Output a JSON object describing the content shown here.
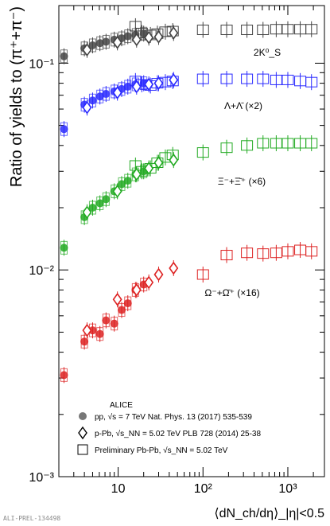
{
  "watermark": "ALI-PREL-134498",
  "chart_data": {
    "type": "scatter",
    "ylabel": "Ratio of yields to (π⁺+π⁻)",
    "xlabel": "⟨dN_ch/dη⟩_|η|<0.5",
    "xscale": "log",
    "yscale": "log",
    "xlim": [
      2.0,
      2700
    ],
    "ylim": [
      0.001,
      0.19
    ],
    "x_ticks": [
      "10",
      "10²",
      "10³"
    ],
    "y_ticks": [
      "10⁻³",
      "10⁻²",
      "10⁻¹"
    ],
    "grid": false,
    "legend_position": "bottom-left",
    "legend_title": "ALICE",
    "legend": [
      {
        "marker": "circle",
        "label": "pp, √s = 7 TeV  Nat. Phys. 13 (2017) 535-539"
      },
      {
        "marker": "diamond",
        "label": "p-Pb, √s_NN = 5.02 TeV  PLB 728 (2014) 25-38"
      },
      {
        "marker": "square",
        "label": "Preliminary Pb-Pb, √s_NN = 5.02 TeV"
      }
    ],
    "series": [
      {
        "name": "2K⁰_S",
        "color": "#444444",
        "pp": {
          "x": [
            2.3,
            4.0,
            5.0,
            6.1,
            7.2,
            9.0,
            11.0,
            13.0,
            16.0,
            20.0
          ],
          "y": [
            0.108,
            0.118,
            0.122,
            0.125,
            0.127,
            0.13,
            0.132,
            0.135,
            0.137,
            0.139
          ]
        },
        "pPb": {
          "x": [
            4.3,
            9.8,
            16.5,
            23.0,
            30.0,
            45.0
          ],
          "y": [
            0.116,
            0.126,
            0.13,
            0.133,
            0.134,
            0.14
          ]
        },
        "PbPb": {
          "x": [
            16.0,
            19.0,
            24.0,
            29.0,
            36.0,
            44.0,
            100.0,
            190.0,
            330.0,
            510.0,
            730.0,
            1000.0,
            1400.0,
            1900.0
          ],
          "y": [
            0.151,
            0.14,
            0.137,
            0.139,
            0.142,
            0.143,
            0.145,
            0.145,
            0.145,
            0.145,
            0.146,
            0.146,
            0.146,
            0.146
          ]
        }
      },
      {
        "name": "Λ+Λ̄ (×2)",
        "color": "#2a2aff",
        "pp": {
          "x": [
            2.3,
            4.0,
            5.0,
            6.1,
            7.2,
            9.0,
            11.0,
            13.0,
            16.0,
            20.0
          ],
          "y": [
            0.048,
            0.063,
            0.066,
            0.069,
            0.071,
            0.073,
            0.075,
            0.077,
            0.079,
            0.08
          ]
        },
        "pPb": {
          "x": [
            4.3,
            9.8,
            16.5,
            23.0,
            30.0,
            45.0
          ],
          "y": [
            0.061,
            0.072,
            0.077,
            0.079,
            0.08,
            0.083
          ]
        },
        "PbPb": {
          "x": [
            16.0,
            19.0,
            24.0,
            29.0,
            36.0,
            44.0,
            100.0,
            190.0,
            330.0,
            510.0,
            730.0,
            1000.0,
            1400.0,
            1900.0
          ],
          "y": [
            0.082,
            0.079,
            0.078,
            0.08,
            0.081,
            0.082,
            0.084,
            0.084,
            0.084,
            0.084,
            0.083,
            0.083,
            0.082,
            0.081
          ]
        }
      },
      {
        "name": "Ξ⁻+Ξ̄⁺ (×6)",
        "color": "#22aa22",
        "pp": {
          "x": [
            2.3,
            4.0,
            5.0,
            6.1,
            7.2,
            9.0,
            11.0,
            13.0,
            16.0,
            20.0
          ],
          "y": [
            0.0128,
            0.018,
            0.02,
            0.021,
            0.022,
            0.024,
            0.026,
            0.027,
            0.029,
            0.03
          ]
        },
        "pPb": {
          "x": [
            4.3,
            9.8,
            16.5,
            23.0,
            30.0,
            45.0
          ],
          "y": [
            0.019,
            0.024,
            0.029,
            0.031,
            0.033,
            0.034
          ]
        },
        "PbPb": {
          "x": [
            16.0,
            19.0,
            24.0,
            29.0,
            36.0,
            44.0,
            100.0,
            190.0,
            330.0,
            510.0,
            730.0,
            1000.0,
            1400.0,
            1900.0
          ],
          "y": [
            0.032,
            0.03,
            0.031,
            0.033,
            0.035,
            0.036,
            0.037,
            0.039,
            0.04,
            0.041,
            0.041,
            0.041,
            0.041,
            0.041
          ]
        }
      },
      {
        "name": "Ω⁻+Ω̄⁺ (×16)",
        "color": "#dd2222",
        "pp": {
          "x": [
            2.3,
            4.0,
            5.0,
            6.1,
            7.2,
            9.0,
            11.0,
            13.0,
            16.0,
            20.0
          ],
          "y": [
            0.0031,
            0.0045,
            0.0051,
            0.0049,
            0.0057,
            0.0055,
            0.0064,
            0.0069,
            0.008,
            0.0085
          ]
        },
        "pPb": {
          "x": [
            4.3,
            9.8,
            16.5,
            23.0,
            30.0,
            45.0
          ],
          "y": [
            0.0051,
            0.0072,
            0.008,
            0.0087,
            0.0095,
            0.0102
          ]
        },
        "PbPb": {
          "x": [
            100.0,
            190.0,
            330.0,
            510.0,
            730.0,
            1000.0,
            1400.0,
            1900.0
          ],
          "y": [
            0.0095,
            0.0118,
            0.0121,
            0.012,
            0.0121,
            0.0123,
            0.0125,
            0.0123
          ]
        }
      }
    ],
    "series_labels": [
      "2K⁰_S",
      "Λ+Λ̄ (×2)",
      "Ξ⁻+Ξ̄⁺ (×6)",
      "Ω⁻+Ω̄⁺ (×16)"
    ]
  }
}
